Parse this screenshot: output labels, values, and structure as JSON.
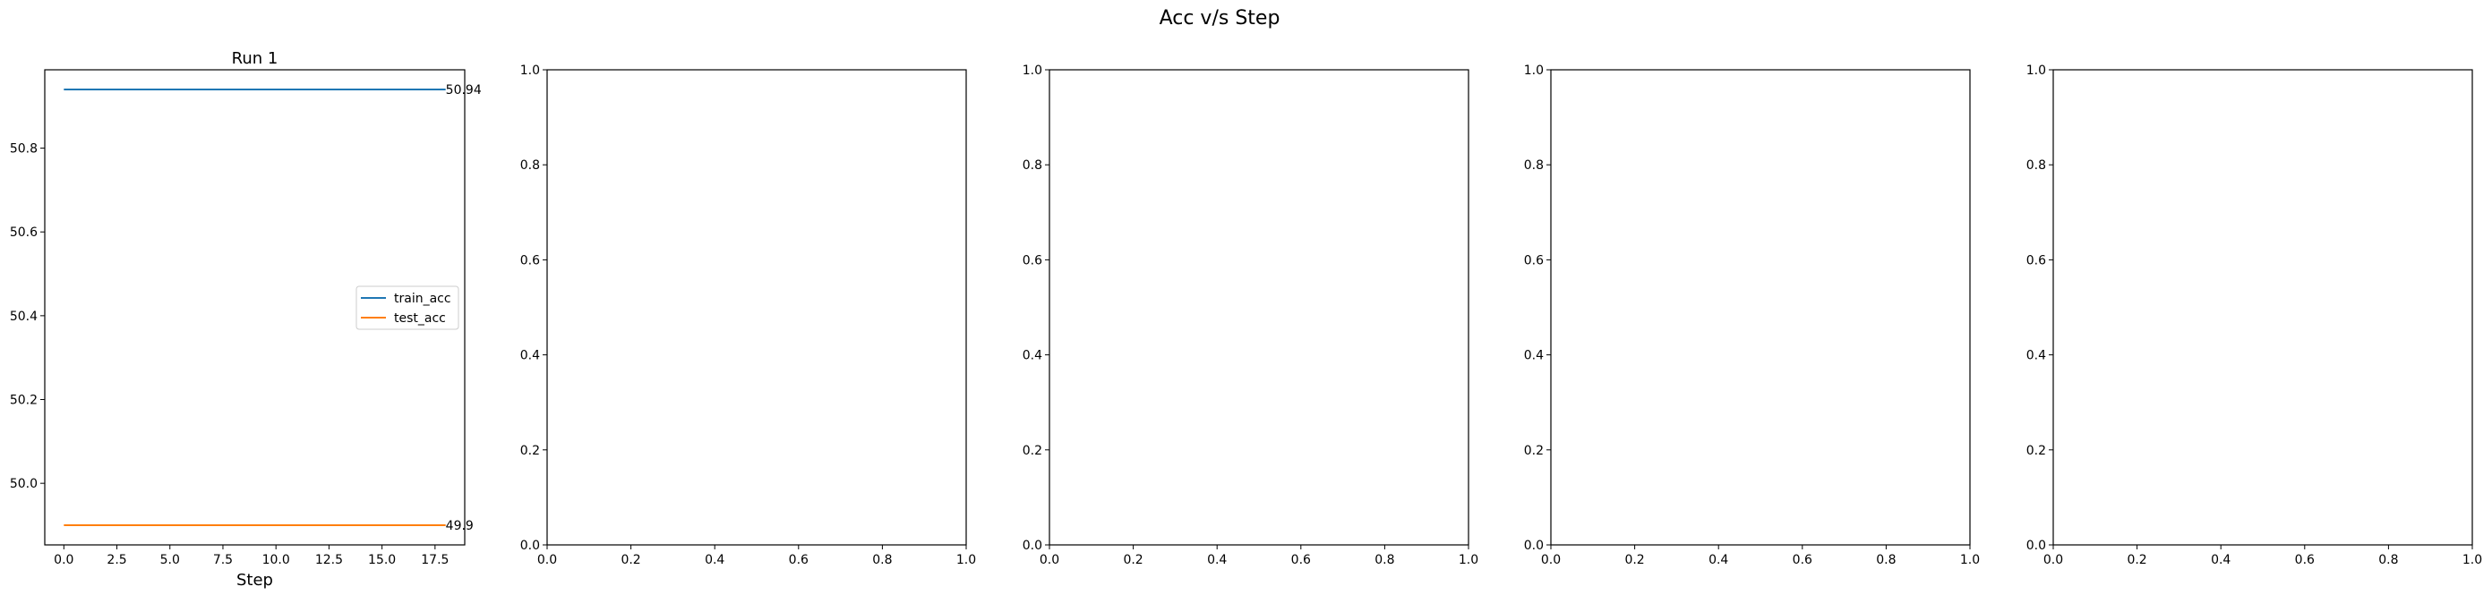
{
  "figure": {
    "title": "Acc v/s Step"
  },
  "colors": {
    "train": "#1f77b4",
    "test": "#ff7f0e",
    "axes": "#000000"
  },
  "chart_data": [
    {
      "type": "line",
      "title": "Run 1",
      "xlabel": "Step",
      "ylabel": "",
      "x": [
        0,
        18
      ],
      "xlim": [
        -0.9,
        18.9
      ],
      "ylim": [
        49.853,
        50.987
      ],
      "xticks": [
        0.0,
        2.5,
        5.0,
        7.5,
        10.0,
        12.5,
        15.0,
        17.5
      ],
      "xtick_labels": [
        "0.0",
        "2.5",
        "5.0",
        "7.5",
        "10.0",
        "12.5",
        "15.0",
        "17.5"
      ],
      "yticks": [
        50.0,
        50.2,
        50.4,
        50.6,
        50.8
      ],
      "ytick_labels": [
        "50.0",
        "50.2",
        "50.4",
        "50.6",
        "50.8"
      ],
      "series": [
        {
          "name": "train_acc",
          "values": [
            50.94,
            50.94
          ],
          "end_label": "50.94"
        },
        {
          "name": "test_acc",
          "values": [
            49.9,
            49.9
          ],
          "end_label": "49.9"
        }
      ],
      "legend": "center-right",
      "grid": false
    },
    {
      "type": "line",
      "title": "",
      "xlabel": "",
      "ylabel": "",
      "xlim": [
        0,
        1
      ],
      "ylim": [
        0,
        1
      ],
      "xticks": [
        0,
        0.2,
        0.4,
        0.6,
        0.8,
        1.0
      ],
      "xtick_labels": [
        "0.0",
        "0.2",
        "0.4",
        "0.6",
        "0.8",
        "1.0"
      ],
      "yticks": [
        0,
        0.2,
        0.4,
        0.6,
        0.8,
        1.0
      ],
      "ytick_labels": [
        "0.0",
        "0.2",
        "0.4",
        "0.6",
        "0.8",
        "1.0"
      ],
      "series": [],
      "grid": false
    },
    {
      "type": "line",
      "title": "",
      "xlabel": "",
      "ylabel": "",
      "xlim": [
        0,
        1
      ],
      "ylim": [
        0,
        1
      ],
      "xticks": [
        0,
        0.2,
        0.4,
        0.6,
        0.8,
        1.0
      ],
      "xtick_labels": [
        "0.0",
        "0.2",
        "0.4",
        "0.6",
        "0.8",
        "1.0"
      ],
      "yticks": [
        0,
        0.2,
        0.4,
        0.6,
        0.8,
        1.0
      ],
      "ytick_labels": [
        "0.0",
        "0.2",
        "0.4",
        "0.6",
        "0.8",
        "1.0"
      ],
      "series": [],
      "grid": false
    },
    {
      "type": "line",
      "title": "",
      "xlabel": "",
      "ylabel": "",
      "xlim": [
        0,
        1
      ],
      "ylim": [
        0,
        1
      ],
      "xticks": [
        0,
        0.2,
        0.4,
        0.6,
        0.8,
        1.0
      ],
      "xtick_labels": [
        "0.0",
        "0.2",
        "0.4",
        "0.6",
        "0.8",
        "1.0"
      ],
      "yticks": [
        0,
        0.2,
        0.4,
        0.6,
        0.8,
        1.0
      ],
      "ytick_labels": [
        "0.0",
        "0.2",
        "0.4",
        "0.6",
        "0.8",
        "1.0"
      ],
      "series": [],
      "grid": false
    },
    {
      "type": "line",
      "title": "",
      "xlabel": "",
      "ylabel": "",
      "xlim": [
        0,
        1
      ],
      "ylim": [
        0,
        1
      ],
      "xticks": [
        0,
        0.2,
        0.4,
        0.6,
        0.8,
        1.0
      ],
      "xtick_labels": [
        "0.0",
        "0.2",
        "0.4",
        "0.6",
        "0.8",
        "1.0"
      ],
      "yticks": [
        0,
        0.2,
        0.4,
        0.6,
        0.8,
        1.0
      ],
      "ytick_labels": [
        "0.0",
        "0.2",
        "0.4",
        "0.6",
        "0.8",
        "1.0"
      ],
      "series": [],
      "grid": false
    }
  ]
}
